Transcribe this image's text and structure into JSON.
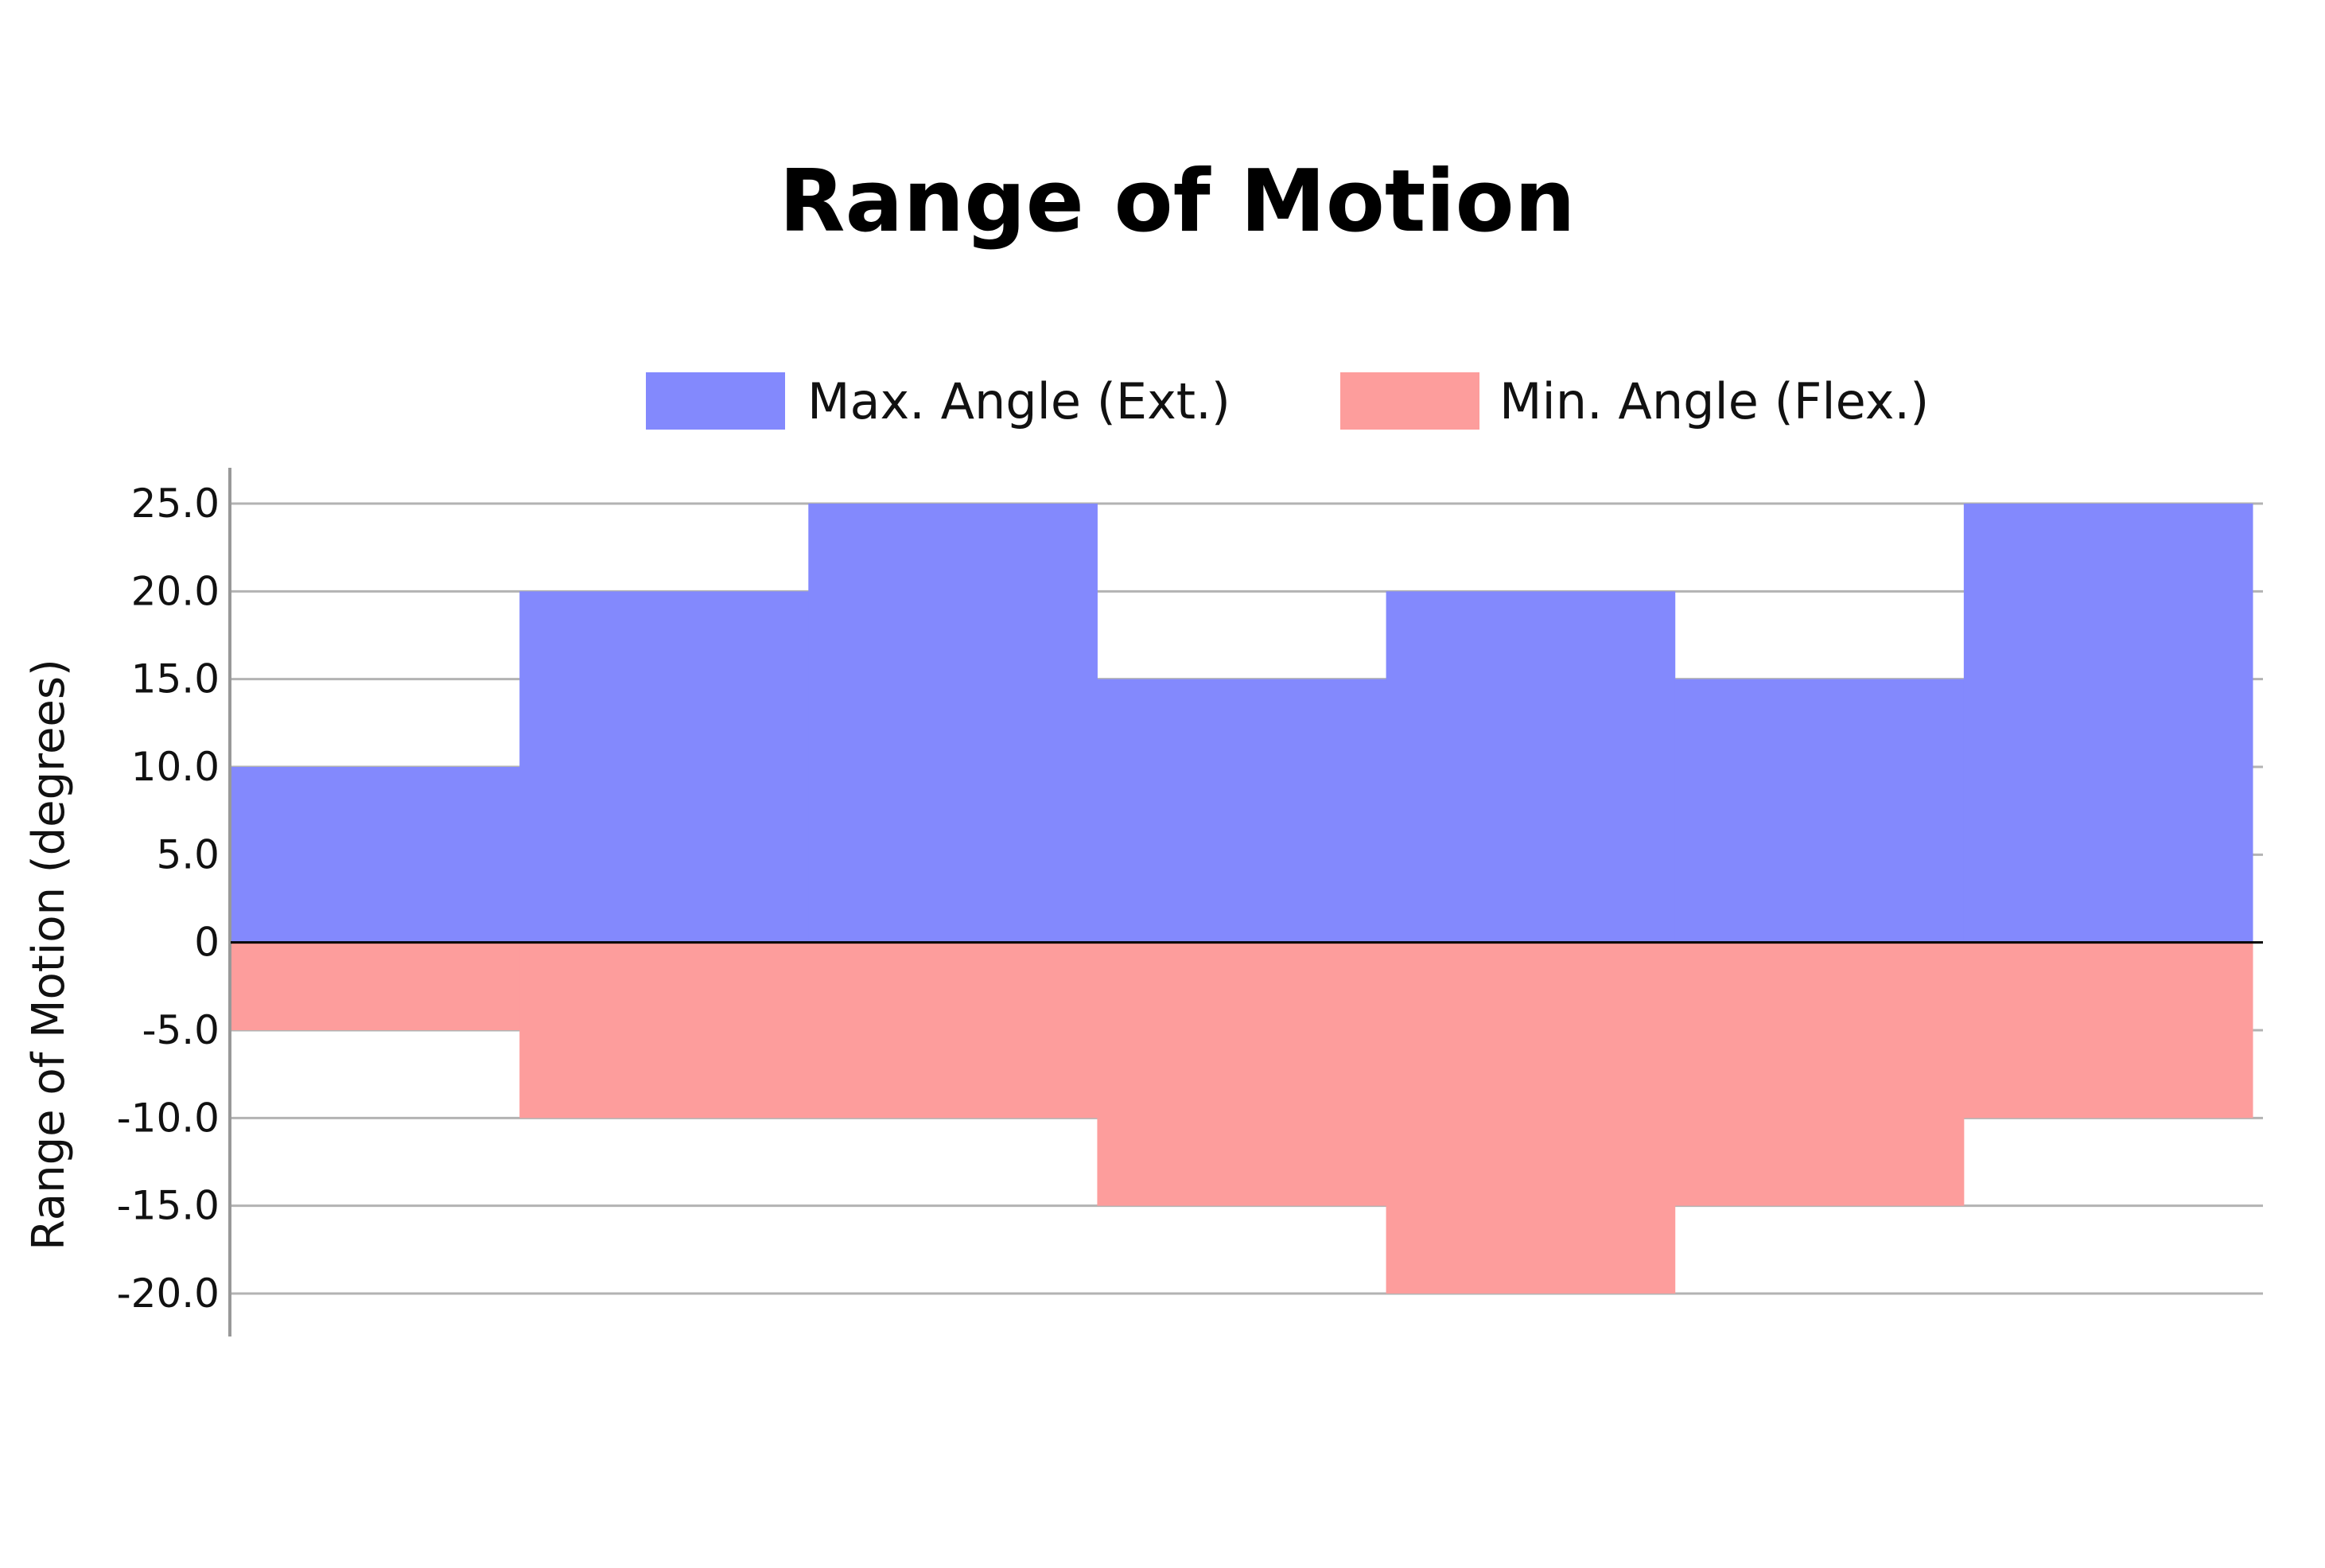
{
  "chart_data": {
    "type": "bar",
    "title": "Range of Motion",
    "xlabel": "",
    "ylabel": "Range of Motion (degrees)",
    "ylim": [
      -20,
      25
    ],
    "yticks": [
      25,
      20,
      15,
      10,
      5,
      0,
      -5,
      -10,
      -15,
      -20
    ],
    "ytick_labels": [
      "25.0",
      "20.0",
      "15.0",
      "10.0",
      "5.0",
      "0",
      "-5.0",
      "-10.0",
      "-15.0",
      "-20.0"
    ],
    "categories": [
      "",
      "",
      "",
      "",
      "",
      "",
      ""
    ],
    "series": [
      {
        "name": "Max. Angle (Ext.)",
        "color": "#8389fd",
        "values": [
          10,
          20,
          25,
          15,
          20,
          15,
          25
        ]
      },
      {
        "name": "Min. Angle (Flex.)",
        "color": "#fd9d9c",
        "values": [
          -5,
          -10,
          -10,
          -15,
          -20,
          -15,
          -10
        ]
      }
    ],
    "legend_position": "top",
    "grid": true
  }
}
